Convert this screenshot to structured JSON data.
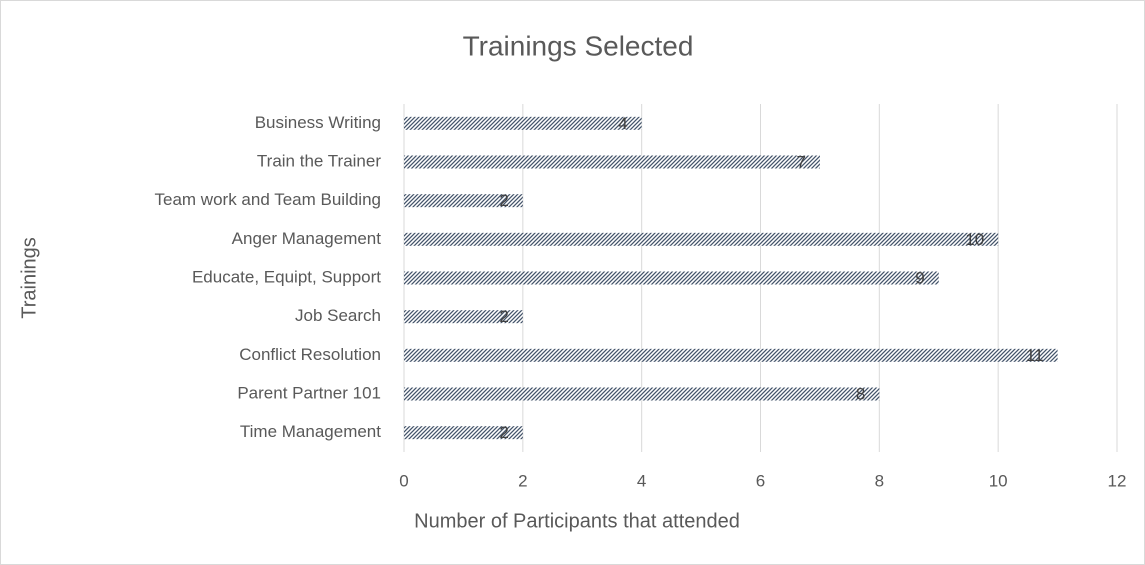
{
  "chart_data": {
    "type": "bar",
    "orientation": "horizontal",
    "title": "Trainings Selected",
    "x_label": "Number of Participants that attended",
    "y_label": "Trainings",
    "categories": [
      "Business Writing",
      "Train the Trainer",
      "Team work and Team Building",
      "Anger Management",
      "Educate, Equipt, Support",
      "Job Search",
      "Conflict Resolution",
      "Parent Partner 101",
      "Time Management"
    ],
    "values": [
      4,
      7,
      2,
      10,
      9,
      2,
      11,
      8,
      2
    ],
    "color": "#44546a",
    "data_labels": true,
    "xlim": [
      0,
      12
    ],
    "xticks": [
      0,
      2,
      4,
      6,
      8,
      10,
      12
    ],
    "grid": true
  }
}
